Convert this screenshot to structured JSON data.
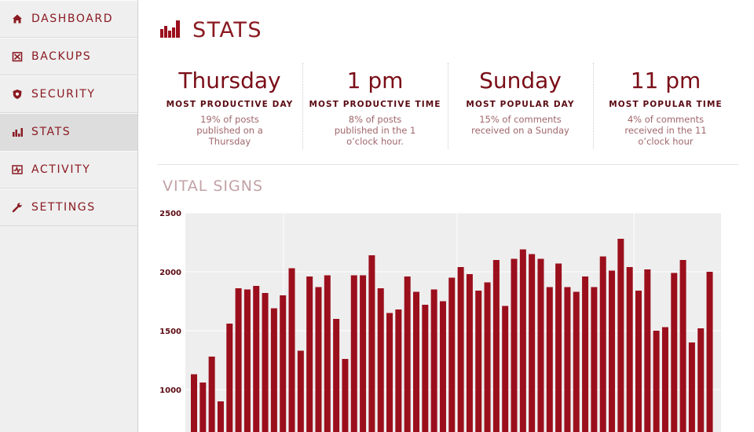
{
  "sidebar": {
    "items": [
      {
        "label": "DASHBOARD",
        "icon": "home-icon",
        "active": false
      },
      {
        "label": "BACKUPS",
        "icon": "backups-icon",
        "active": false
      },
      {
        "label": "SECURITY",
        "icon": "shield-icon",
        "active": false
      },
      {
        "label": "STATS",
        "icon": "bar-chart-icon",
        "active": true
      },
      {
        "label": "ACTIVITY",
        "icon": "activity-icon",
        "active": false
      },
      {
        "label": "SETTINGS",
        "icon": "wrench-icon",
        "active": false
      }
    ]
  },
  "header": {
    "title": "STATS",
    "icon": "bar-chart-icon"
  },
  "highlights": [
    {
      "value": "Thursday",
      "caption": "MOST PRODUCTIVE DAY",
      "description": "19% of posts published on a Thursday"
    },
    {
      "value": "1 pm",
      "caption": "MOST PRODUCTIVE TIME",
      "description": "8% of posts published in the 1 o’clock hour."
    },
    {
      "value": "Sunday",
      "caption": "MOST POPULAR DAY",
      "description": "15% of comments received on a Sunday"
    },
    {
      "value": "11 pm",
      "caption": "MOST POPULAR TIME",
      "description": "4% of comments received in the 11 o’clock hour"
    }
  ],
  "vital_signs": {
    "title": "VITAL SIGNS"
  },
  "colors": {
    "accent": "#9b0f1c",
    "text": "#7a0d17",
    "chart_bg": "#eeeeee"
  },
  "chart_data": {
    "type": "bar",
    "title": "",
    "xlabel": "",
    "ylabel": "",
    "ylim": [
      880,
      2500
    ],
    "yticks": [
      "2500",
      "2000",
      "1500",
      "1000"
    ],
    "grid": true,
    "series": [
      {
        "values": [
          1130,
          1060,
          1280,
          900,
          1560,
          1860,
          1850,
          1880,
          1820,
          1690,
          1800,
          2030,
          1330,
          1960,
          1870,
          1970,
          1600,
          1260,
          1970,
          1970,
          2140,
          1860,
          1650,
          1680,
          1960,
          1830,
          1720,
          1850,
          1750,
          1950,
          2040,
          1980,
          1840,
          1910,
          2100,
          1710,
          2110,
          2190,
          2150,
          2110,
          1870,
          2070,
          1870,
          1830,
          1960,
          1870,
          2130,
          2010,
          2280,
          2040,
          1840,
          2020,
          1500,
          1530,
          1990,
          2100,
          1400,
          1520,
          2000
        ]
      }
    ]
  }
}
